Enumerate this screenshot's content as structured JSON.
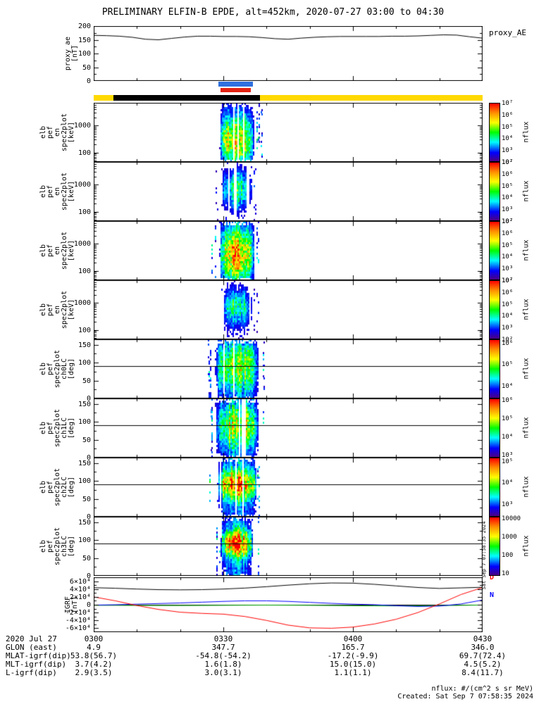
{
  "title": "PRELIMINARY ELFIN-B EPDE, alt=452km, 2020-07-27 03:00 to 04:30",
  "colors": {
    "background": "#ffffff",
    "axis": "#000000"
  },
  "side_timestamp": "Sat Sep 7 07:58:35 2024",
  "footer": {
    "nflux_units": "nflux: #/(cm^2 s sr MeV)",
    "created": "Created: Sat Sep 7 07:58:35 2024"
  },
  "bars": {
    "rows": [
      {
        "name": "blue",
        "lane": "blue",
        "color": "#2f6fde",
        "t0": 28.8,
        "t1": 36.8
      },
      {
        "name": "red",
        "lane": "red",
        "color": "#e42313",
        "t0": 29.3,
        "t1": 36.3
      },
      {
        "name": "yellow",
        "lane": "yellow",
        "color": "#ffd900",
        "t0": 0,
        "t1": 90
      },
      {
        "name": "black",
        "lane": "yellow",
        "color": "#000000",
        "t0": 4.5,
        "t1": 38.5
      }
    ]
  },
  "table": {
    "rows": [
      {
        "label": "2020 Jul 27",
        "values": [
          "0300",
          "0330",
          "0400",
          "0430"
        ]
      },
      {
        "label": "GLON (east)",
        "values": [
          "4.9",
          "347.7",
          "165.7",
          "346.0"
        ]
      },
      {
        "label": "MLAT-igrf(dip)",
        "values": [
          "53.8(56.7)",
          "-54.8(-54.2)",
          "-17.2(-9.9)",
          "69.7(72.4)"
        ]
      },
      {
        "label": "MLT-igrf(dip)",
        "values": [
          "3.7(4.2)",
          "1.6(1.8)",
          "15.0(15.0)",
          "4.5(5.2)"
        ]
      },
      {
        "label": "L-igrf(dip)",
        "values": [
          "2.9(3.5)",
          "3.0(3.1)",
          "1.1(1.1)",
          "8.4(11.7)"
        ]
      }
    ]
  },
  "chart_data": [
    {
      "id": "proxy_ae",
      "type": "line",
      "right_label": "proxy_AE",
      "ylabel_lines": [
        "proxy_ae",
        "[nT]"
      ],
      "ylim": [
        0,
        200
      ],
      "yscale": "linear",
      "yminor_step": 25,
      "ytick_vals": [
        0,
        50,
        100,
        150,
        200
      ],
      "ytick_labels": [
        "0",
        "50",
        "100",
        "150",
        "200"
      ],
      "color": "#000000",
      "x": [
        0,
        3,
        6,
        9,
        12,
        15,
        18,
        21,
        24,
        27,
        30,
        33,
        36,
        39,
        42,
        45,
        48,
        51,
        54,
        57,
        60,
        63,
        66,
        69,
        72,
        75,
        78,
        81,
        84,
        87,
        90
      ],
      "y": [
        166,
        165,
        163,
        159,
        152,
        150,
        155,
        160,
        163,
        163,
        162,
        162,
        161,
        158,
        154,
        152,
        156,
        159,
        161,
        162,
        162,
        162,
        162,
        163,
        163,
        164,
        166,
        168,
        167,
        161,
        156
      ]
    },
    {
      "id": "en_spec_a",
      "type": "heat",
      "ylabel_lines": [
        "elb",
        "pef",
        "en",
        "spec2plot",
        "[keV]"
      ],
      "yscale": "log",
      "ylim": [
        45,
        7000
      ],
      "ytick_vals": [
        100,
        1000
      ],
      "ytick_labels": [
        "100",
        "1000"
      ],
      "yminor": [
        50,
        60,
        70,
        80,
        90,
        200,
        300,
        400,
        500,
        600,
        700,
        800,
        900,
        2000,
        3000,
        4000,
        5000,
        6000
      ],
      "burst": {
        "t0": 29,
        "t1": 37,
        "peak_ft": 0.62,
        "sigma_ft": 0.3,
        "base": 0.16,
        "max": 0.8,
        "gap": 0.08,
        "spurs": 5
      },
      "colorbar": {
        "label": "nflux",
        "ticks": [
          {
            "label": "10⁷",
            "f": 0
          },
          {
            "label": "10⁶",
            "f": 0.2
          },
          {
            "label": "10⁵",
            "f": 0.4
          },
          {
            "label": "10⁴",
            "f": 0.6
          },
          {
            "label": "10³",
            "f": 0.8
          },
          {
            "label": "10²",
            "f": 1
          }
        ]
      }
    },
    {
      "id": "en_spec_b",
      "type": "heat",
      "ylabel_lines": [
        "elb",
        "pef",
        "en",
        "spec2plot",
        "[keV]"
      ],
      "yscale": "log",
      "ylim": [
        45,
        7000
      ],
      "ytick_vals": [
        100,
        1000
      ],
      "ytick_labels": [
        "100",
        "1000"
      ],
      "yminor": [
        50,
        60,
        70,
        80,
        90,
        200,
        300,
        400,
        500,
        600,
        700,
        800,
        900,
        2000,
        3000,
        4000,
        5000,
        6000
      ],
      "burst": {
        "t0": 29.5,
        "t1": 36.5,
        "peak_ft": 0.45,
        "sigma_ft": 0.22,
        "base": 0.1,
        "max": 0.52,
        "gap": 0.18,
        "spurs": 4
      },
      "colorbar": {
        "label": "nflux",
        "ticks": [
          {
            "label": "10⁷",
            "f": 0
          },
          {
            "label": "10⁶",
            "f": 0.2
          },
          {
            "label": "10⁵",
            "f": 0.4
          },
          {
            "label": "10⁴",
            "f": 0.6
          },
          {
            "label": "10³",
            "f": 0.8
          },
          {
            "label": "10²",
            "f": 1
          }
        ]
      }
    },
    {
      "id": "en_spec_c",
      "type": "heat",
      "ylabel_lines": [
        "elb",
        "pef",
        "en",
        "spec2plot",
        "[keV]"
      ],
      "yscale": "log",
      "ylim": [
        45,
        7000
      ],
      "ytick_vals": [
        100,
        1000
      ],
      "ytick_labels": [
        "100",
        "1000"
      ],
      "yminor": [
        50,
        60,
        70,
        80,
        90,
        200,
        300,
        400,
        500,
        600,
        700,
        800,
        900,
        2000,
        3000,
        4000,
        5000,
        6000
      ],
      "burst": {
        "t0": 29,
        "t1": 37,
        "peak_ft": 0.55,
        "sigma_ft": 0.32,
        "base": 0.16,
        "max": 0.85,
        "gap": 0.07,
        "spurs": 4
      },
      "colorbar": {
        "label": "nflux",
        "ticks": [
          {
            "label": "10⁷",
            "f": 0
          },
          {
            "label": "10⁶",
            "f": 0.2
          },
          {
            "label": "10⁵",
            "f": 0.4
          },
          {
            "label": "10⁴",
            "f": 0.6
          },
          {
            "label": "10³",
            "f": 0.8
          },
          {
            "label": "10²",
            "f": 1
          }
        ]
      }
    },
    {
      "id": "en_spec_d",
      "type": "heat",
      "ylabel_lines": [
        "elb",
        "pef",
        "en",
        "spec2plot",
        "[keV]"
      ],
      "yscale": "log",
      "ylim": [
        45,
        7000
      ],
      "ytick_vals": [
        100,
        1000
      ],
      "ytick_labels": [
        "100",
        "1000"
      ],
      "yminor": [
        50,
        60,
        70,
        80,
        90,
        200,
        300,
        400,
        500,
        600,
        700,
        800,
        900,
        2000,
        3000,
        4000,
        5000,
        6000
      ],
      "burst": {
        "t0": 29.5,
        "t1": 36.5,
        "peak_ft": 0.45,
        "sigma_ft": 0.22,
        "base": 0.1,
        "max": 0.48,
        "gap": 0.22,
        "spurs": 3
      },
      "colorbar": {
        "label": "nflux",
        "ticks": [
          {
            "label": "10⁷",
            "f": 0
          },
          {
            "label": "10⁶",
            "f": 0.2
          },
          {
            "label": "10⁵",
            "f": 0.4
          },
          {
            "label": "10⁴",
            "f": 0.6
          },
          {
            "label": "10³",
            "f": 0.8
          },
          {
            "label": "10²",
            "f": 1
          }
        ]
      }
    },
    {
      "id": "ch0lc",
      "type": "heat",
      "ylabel_lines": [
        "elb",
        "pef",
        "spec2plot",
        "ch0LC",
        "[deg]"
      ],
      "yscale": "linear",
      "ylim": [
        0,
        165
      ],
      "yminor_step": 25,
      "hline": 90,
      "ytick_vals": [
        0,
        50,
        100,
        150
      ],
      "ytick_labels": [
        "0",
        "50",
        "100",
        "150"
      ],
      "burst": {
        "t0": 28,
        "t1": 38,
        "peak_ft": 0.45,
        "sigma_ft": 0.28,
        "base": 0.34,
        "max": 0.7,
        "gap": 0.04,
        "spurs": 6
      },
      "colorbar": {
        "label": "nflux",
        "ticks": [
          {
            "label": "10⁶",
            "f": 0.06
          },
          {
            "label": "10⁵",
            "f": 0.42
          },
          {
            "label": "10⁴",
            "f": 0.78
          }
        ]
      }
    },
    {
      "id": "ch1lc",
      "type": "heat",
      "ylabel_lines": [
        "elb",
        "pef",
        "spec2plot",
        "ch1LC",
        "[deg]"
      ],
      "yscale": "linear",
      "ylim": [
        0,
        165
      ],
      "yminor_step": 25,
      "hline": 90,
      "ytick_vals": [
        0,
        50,
        100,
        150
      ],
      "ytick_labels": [
        "0",
        "50",
        "100",
        "150"
      ],
      "burst": {
        "t0": 28,
        "t1": 38,
        "peak_ft": 0.45,
        "sigma_ft": 0.26,
        "base": 0.34,
        "max": 0.76,
        "gap": 0.04,
        "spurs": 5
      },
      "colorbar": {
        "label": "nflux",
        "ticks": [
          {
            "label": "10⁶",
            "f": 0.02
          },
          {
            "label": "10⁵",
            "f": 0.33
          },
          {
            "label": "10⁴",
            "f": 0.64
          },
          {
            "label": "10³",
            "f": 0.95
          }
        ]
      }
    },
    {
      "id": "ch2lc",
      "type": "heat",
      "ylabel_lines": [
        "elb",
        "pef",
        "spec2plot",
        "ch2LC",
        "[deg]"
      ],
      "yscale": "linear",
      "ylim": [
        0,
        165
      ],
      "yminor_step": 25,
      "hline": 90,
      "ytick_vals": [
        0,
        50,
        100,
        150
      ],
      "ytick_labels": [
        "0",
        "50",
        "100",
        "150"
      ],
      "burst": {
        "t0": 28.5,
        "t1": 37.5,
        "peak_ft": 0.44,
        "sigma_ft": 0.17,
        "base": 0.32,
        "max": 1.05,
        "gap": 0.05,
        "spurs": 4
      },
      "colorbar": {
        "label": "nflux",
        "ticks": [
          {
            "label": "10⁵",
            "f": 0.06
          },
          {
            "label": "10⁴",
            "f": 0.42
          },
          {
            "label": "10³",
            "f": 0.78
          }
        ]
      }
    },
    {
      "id": "ch3lc",
      "type": "heat",
      "ylabel_lines": [
        "elb",
        "pef",
        "spec2plot",
        "ch3LC",
        "[deg]"
      ],
      "yscale": "linear",
      "ylim": [
        0,
        165
      ],
      "yminor_step": 25,
      "hline": 90,
      "ytick_vals": [
        0,
        50,
        100,
        150
      ],
      "ytick_labels": [
        "0",
        "50",
        "100",
        "150"
      ],
      "burst": {
        "t0": 29.3,
        "t1": 36.6,
        "peak_ft": 0.44,
        "sigma_ft": 0.15,
        "base": 0.3,
        "max": 1.08,
        "gap": 0.06,
        "spurs": 4
      },
      "colorbar": {
        "label": "nflux",
        "ticks": [
          {
            "label": "10000",
            "f": 0.02
          },
          {
            "label": "1000",
            "f": 0.33
          },
          {
            "label": "100",
            "f": 0.64
          },
          {
            "label": "10",
            "f": 0.95
          }
        ]
      }
    },
    {
      "id": "igrf",
      "type": "multi",
      "ylabel_lines": [
        "IGRF",
        "[nT]"
      ],
      "yscale": "linear",
      "ylim": [
        -70000,
        70000
      ],
      "yminor_step": 10000,
      "ytick_vals": [
        -60000,
        -40000,
        -20000,
        0,
        20000,
        40000,
        60000
      ],
      "ytick_labels": [
        "-6×10⁴",
        "-4×10⁴",
        "-2×10⁴",
        "0",
        "2×10⁴",
        "4×10⁴",
        "6×10⁴"
      ],
      "legend": [
        {
          "label": "D",
          "color": "#ff0000"
        },
        {
          "label": "N",
          "color": "#0000ff"
        }
      ],
      "series": [
        {
          "name": "E",
          "color": "#00aa00",
          "x": [
            0,
            5,
            10,
            15,
            20,
            25,
            30,
            35,
            40,
            45,
            50,
            55,
            60,
            65,
            70,
            75,
            80,
            85,
            90
          ],
          "y": [
            -1500,
            -1500,
            -1800,
            -2000,
            -2000,
            -1800,
            -1500,
            -1200,
            -1000,
            -1200,
            -1500,
            -2000,
            -2500,
            -2800,
            -3000,
            -2800,
            -2200,
            -1500,
            -800
          ]
        },
        {
          "name": "N",
          "color": "#0000ff",
          "x": [
            0,
            5,
            10,
            15,
            20,
            25,
            30,
            35,
            40,
            45,
            50,
            55,
            60,
            65,
            70,
            75,
            80,
            85,
            90
          ],
          "y": [
            -1000,
            0,
            1500,
            3000,
            4500,
            6500,
            8500,
            10000,
            10000,
            8500,
            6000,
            3500,
            1500,
            0,
            -2500,
            -4500,
            -3500,
            2000,
            12000
          ]
        },
        {
          "name": "D",
          "color": "#ff0000",
          "x": [
            0,
            5,
            10,
            15,
            20,
            25,
            30,
            35,
            40,
            45,
            50,
            55,
            60,
            65,
            70,
            75,
            80,
            85,
            90
          ],
          "y": [
            20000,
            10000,
            -2000,
            -12000,
            -19000,
            -22000,
            -24000,
            -30000,
            -40000,
            -52000,
            -59000,
            -60000,
            -57000,
            -49000,
            -37000,
            -20000,
            2000,
            26000,
            44000
          ]
        },
        {
          "name": "B",
          "color": "#000000",
          "x": [
            0,
            5,
            10,
            15,
            20,
            25,
            30,
            35,
            40,
            45,
            50,
            55,
            60,
            65,
            70,
            75,
            80,
            85,
            90
          ],
          "y": [
            43500,
            42000,
            40000,
            38500,
            38000,
            38500,
            40000,
            42500,
            46000,
            50000,
            53500,
            55500,
            55000,
            52000,
            48000,
            44000,
            41500,
            43000,
            44500
          ]
        }
      ]
    }
  ]
}
